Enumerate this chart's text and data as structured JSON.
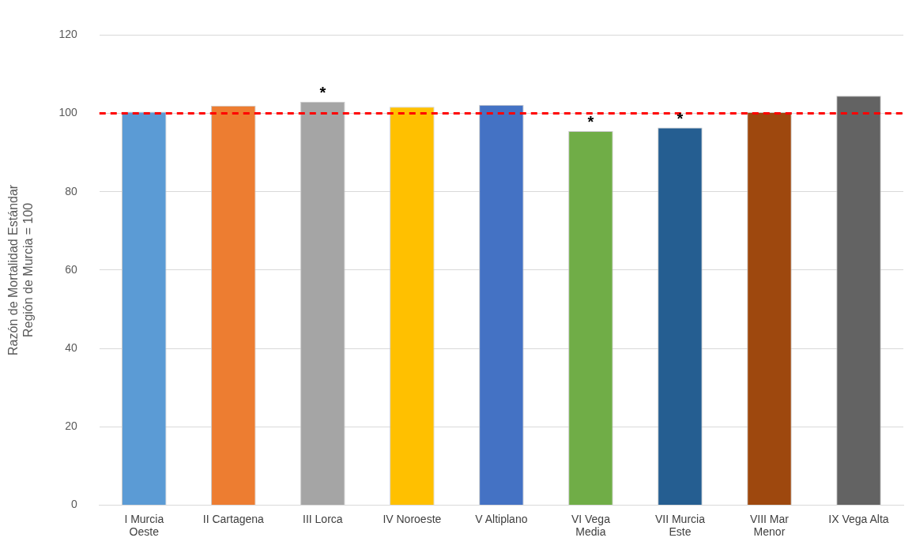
{
  "chart_data": {
    "type": "bar",
    "ylabel": "Razón de Mortalidad Estándar\nRegión de Murcia = 100",
    "categories": [
      "I Murcia Oeste",
      "II Cartagena",
      "III Lorca",
      "IV Noroeste",
      "V Altiplano",
      "VI Vega Media",
      "VII Murcia Este",
      "VIII Mar Menor",
      "IX Vega Alta"
    ],
    "values": [
      100.4,
      102,
      103,
      101.7,
      102.2,
      95.5,
      96.4,
      100.3,
      104.5
    ],
    "colors": [
      "#5b9bd5",
      "#ed7d31",
      "#a5a5a5",
      "#ffc000",
      "#4472c4",
      "#70ad47",
      "#255e91",
      "#9e480e",
      "#636363"
    ],
    "ylim": [
      0,
      120
    ],
    "yticks": [
      0,
      20,
      40,
      60,
      80,
      100,
      120
    ],
    "grid": "y",
    "legend": false,
    "ref_lines": [
      {
        "axis": "y",
        "value": 100,
        "color": "#ff0000",
        "line_style": "dashed"
      }
    ],
    "annotations": [
      {
        "text": "*",
        "x": "III Lorca",
        "y": 103
      },
      {
        "text": "*",
        "x": "VI Vega Media",
        "y": 95.5
      },
      {
        "text": "*",
        "x": "VII Murcia Este",
        "y": 96.4
      }
    ]
  }
}
